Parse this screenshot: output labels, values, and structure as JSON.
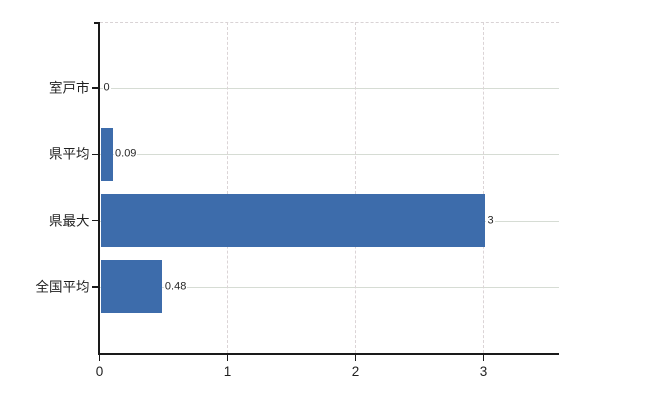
{
  "chart_data": {
    "type": "bar",
    "orientation": "horizontal",
    "title": "",
    "xlabel": "",
    "ylabel": "",
    "categories": [
      "室戸市",
      "県平均",
      "県最大",
      "全国平均"
    ],
    "values": [
      0,
      0.09,
      3,
      0.48
    ],
    "value_labels": [
      "0",
      "0.09",
      "3",
      "0.48"
    ],
    "xticks": [
      0,
      1,
      2,
      3
    ],
    "xtick_labels": [
      "0",
      "1",
      "2",
      "3"
    ],
    "xlim": [
      0,
      3.59
    ],
    "grid": true,
    "legend": false
  },
  "colors": {
    "bar": "#3d6cab",
    "axis": "#1a1a1a",
    "gridline_horizontal": "#d6dcd4",
    "gridline_vertical": "#dbd4d6",
    "text": "#1f1f1f",
    "background": "#ffffff"
  }
}
